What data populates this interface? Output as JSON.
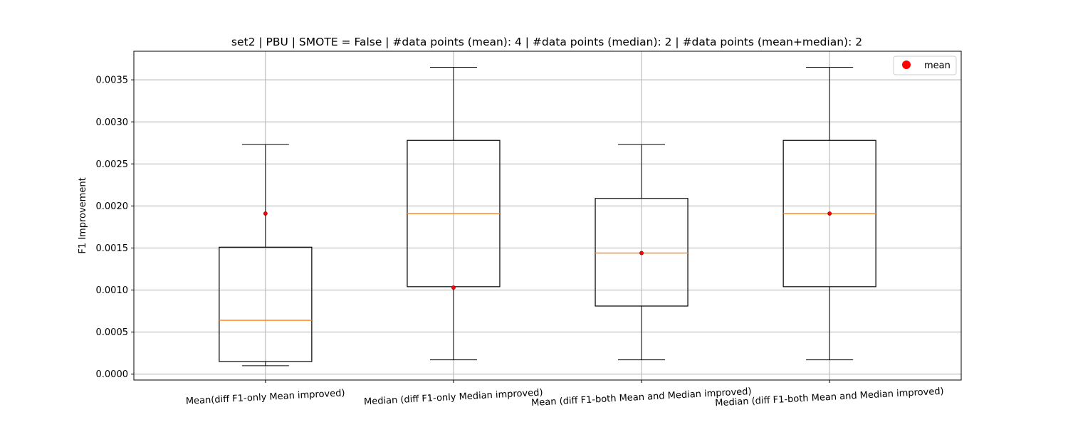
{
  "chart_data": {
    "type": "box",
    "title": "set2 | PBU | SMOTE = False | #data points (mean): 4 | #data points (median): 2 | #data points (mean+median): 2",
    "xlabel": "",
    "ylabel": "F1 Improvement",
    "ylim": [
      -7e-05,
      0.00384
    ],
    "yticks": [
      0.0,
      0.0005,
      0.001,
      0.0015,
      0.002,
      0.0025,
      0.003,
      0.0035
    ],
    "ytick_labels": [
      "0.0000",
      "0.0005",
      "0.0010",
      "0.0015",
      "0.0020",
      "0.0025",
      "0.0030",
      "0.0035"
    ],
    "grid": true,
    "legend": {
      "position": "top-right",
      "entries": [
        {
          "label": "mean",
          "color": "#ff0000",
          "marker": "circle"
        }
      ]
    },
    "categories": [
      "Mean(diff F1-only Mean improved)",
      "Median (diff F1-only Median improved)",
      "Mean (diff F1-both Mean and Median improved)",
      "Median (diff F1-both Mean and Median improved)"
    ],
    "boxes": [
      {
        "whisker_low": 0.0001,
        "q1": 0.00015,
        "median": 0.00064,
        "q3": 0.00151,
        "whisker_high": 0.00273,
        "mean": 0.00191
      },
      {
        "whisker_low": 0.00017,
        "q1": 0.00104,
        "median": 0.00191,
        "q3": 0.00278,
        "whisker_high": 0.00365,
        "mean": 0.00103
      },
      {
        "whisker_low": 0.00017,
        "q1": 0.00081,
        "median": 0.00144,
        "q3": 0.00209,
        "whisker_high": 0.00273,
        "mean": 0.00144
      },
      {
        "whisker_low": 0.00017,
        "q1": 0.00104,
        "median": 0.00191,
        "q3": 0.00278,
        "whisker_high": 0.00365,
        "mean": 0.00191
      }
    ],
    "colors": {
      "box": "#000000",
      "median": "#ff7f0e",
      "mean": "#ff0000",
      "grid": "#b0b0b0"
    }
  }
}
